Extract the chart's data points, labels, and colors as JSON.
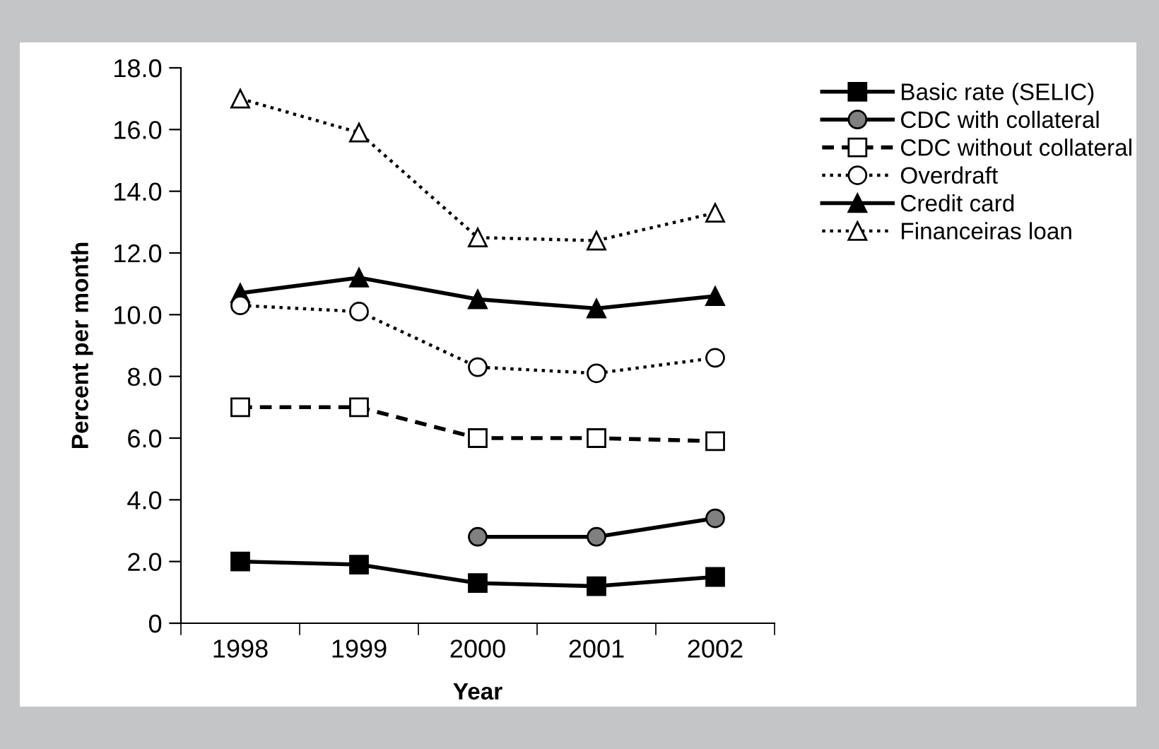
{
  "chart_data": {
    "type": "line",
    "xlabel": "Year",
    "ylabel": "Percent per month",
    "categories": [
      "1998",
      "1999",
      "2000",
      "2001",
      "2002"
    ],
    "series": [
      {
        "name": "Basic rate (SELIC)",
        "color": "#000000",
        "marker": "square",
        "line_style": "solid",
        "values": [
          2.0,
          1.9,
          1.3,
          1.2,
          1.5
        ]
      },
      {
        "name": "CDC with collateral",
        "color": "#808080",
        "marker": "circle",
        "line_style": "solid",
        "values": [
          null,
          null,
          2.8,
          2.8,
          3.4
        ]
      },
      {
        "name": "CDC without collateral",
        "color": "#ffffff",
        "marker": "square",
        "line_style": "dashed",
        "values": [
          7.0,
          7.0,
          6.0,
          6.0,
          5.9
        ]
      },
      {
        "name": "Overdraft",
        "color": "#ffffff",
        "marker": "circle",
        "line_style": "dotted",
        "values": [
          10.3,
          10.1,
          8.3,
          8.1,
          8.6
        ]
      },
      {
        "name": "Credit card",
        "color": "#000000",
        "marker": "triangle",
        "line_style": "solid",
        "values": [
          10.7,
          11.2,
          10.5,
          10.2,
          10.6
        ]
      },
      {
        "name": "Financeiras loan",
        "color": "#ffffff",
        "marker": "triangle",
        "line_style": "dotted",
        "values": [
          17.0,
          15.9,
          12.5,
          12.4,
          13.3
        ]
      }
    ],
    "ylim": [
      0,
      18
    ],
    "yticks": [
      0,
      {
        "value": 2,
        "label": "2.0"
      },
      {
        "value": 4,
        "label": "4.0"
      },
      {
        "value": 6,
        "label": "6.0"
      },
      {
        "value": 8,
        "label": "8.0"
      },
      {
        "value": 10,
        "label": "10.0"
      },
      {
        "value": 12,
        "label": "12.0"
      },
      {
        "value": 14,
        "label": "14.0"
      },
      {
        "value": 16,
        "label": "16.0"
      },
      {
        "value": 18,
        "label": "18.0"
      }
    ],
    "grid": false,
    "legend": "top right"
  }
}
